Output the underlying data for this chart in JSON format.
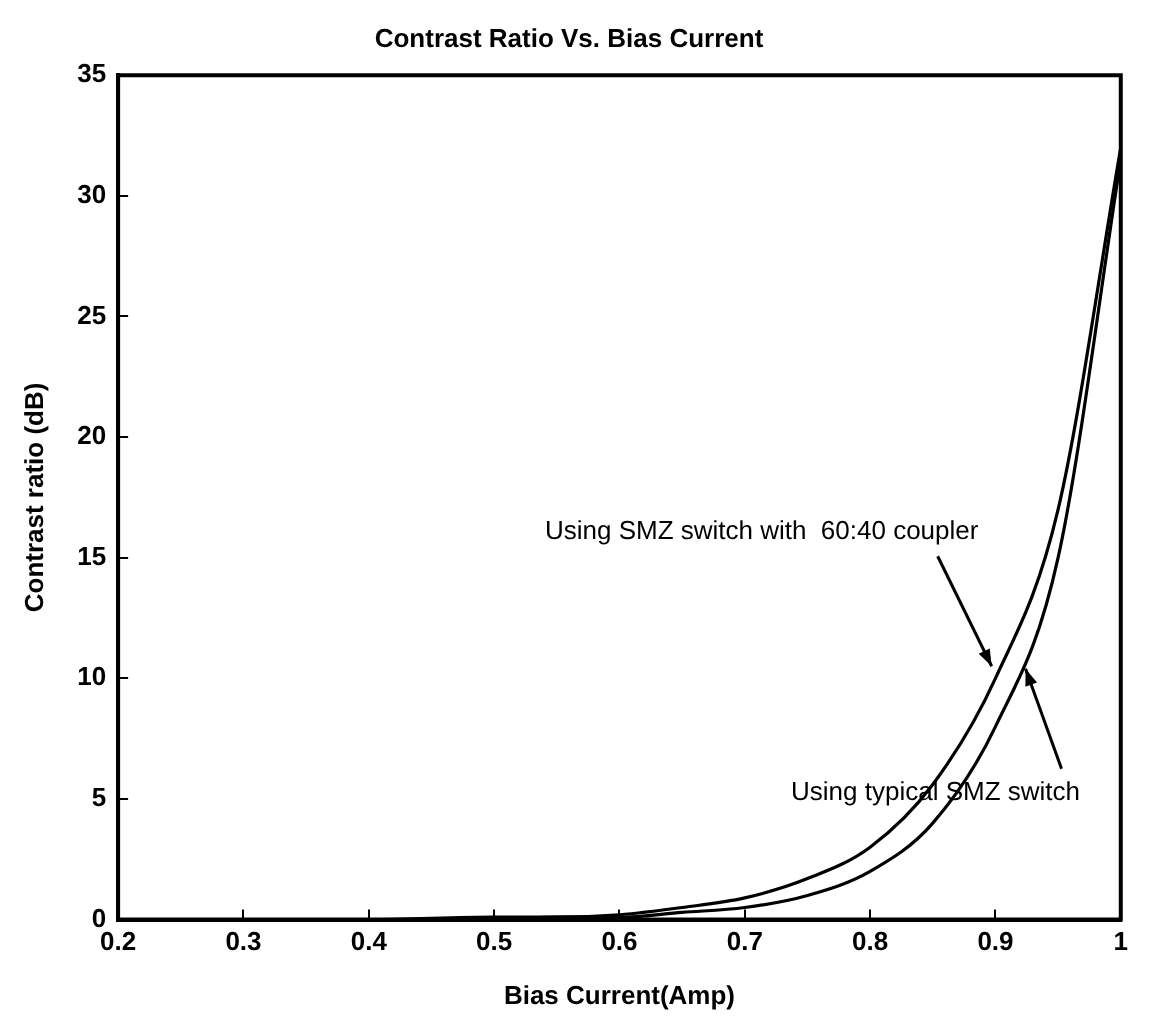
{
  "chart_data": {
    "type": "line",
    "title": "Contrast Ratio Vs. Bias Current",
    "xlabel": "Bias Current(Amp)",
    "ylabel": "Contrast ratio (dB)",
    "x": [
      0.2,
      0.3,
      0.4,
      0.5,
      0.55,
      0.6,
      0.65,
      0.7,
      0.75,
      0.8,
      0.85,
      0.9,
      0.95,
      1
    ],
    "series": [
      {
        "color": "#000000",
        "values": [
          0,
          0,
          0,
          0.1,
          0.1,
          0.2,
          0.5,
          0.9,
          1.7,
          3.0,
          5.6,
          10,
          17,
          32
        ]
      },
      {
        "color": "#000000",
        "values": [
          0,
          0,
          0,
          0,
          0.1,
          0.1,
          0.3,
          0.5,
          1.0,
          2.0,
          4.0,
          8,
          15,
          31.5
        ]
      }
    ],
    "xlim": [
      0.2,
      1
    ],
    "xticks": [
      0.2,
      0.3,
      0.4,
      0.5,
      0.6,
      0.7,
      0.8,
      0.9,
      1
    ],
    "ylim": [
      0,
      35
    ],
    "yticks": [
      0,
      5,
      10,
      15,
      20,
      25,
      30,
      35
    ],
    "grid": false,
    "legend": false,
    "marker": "none",
    "line_style": "solid",
    "annotations": [
      {
        "text": "Using SMZ switch with  60:40 coupler",
        "x": 0.897,
        "y": 10.5
      },
      {
        "text": "Using typical SMZ switch",
        "x": 0.924,
        "y": 10.4
      }
    ]
  }
}
